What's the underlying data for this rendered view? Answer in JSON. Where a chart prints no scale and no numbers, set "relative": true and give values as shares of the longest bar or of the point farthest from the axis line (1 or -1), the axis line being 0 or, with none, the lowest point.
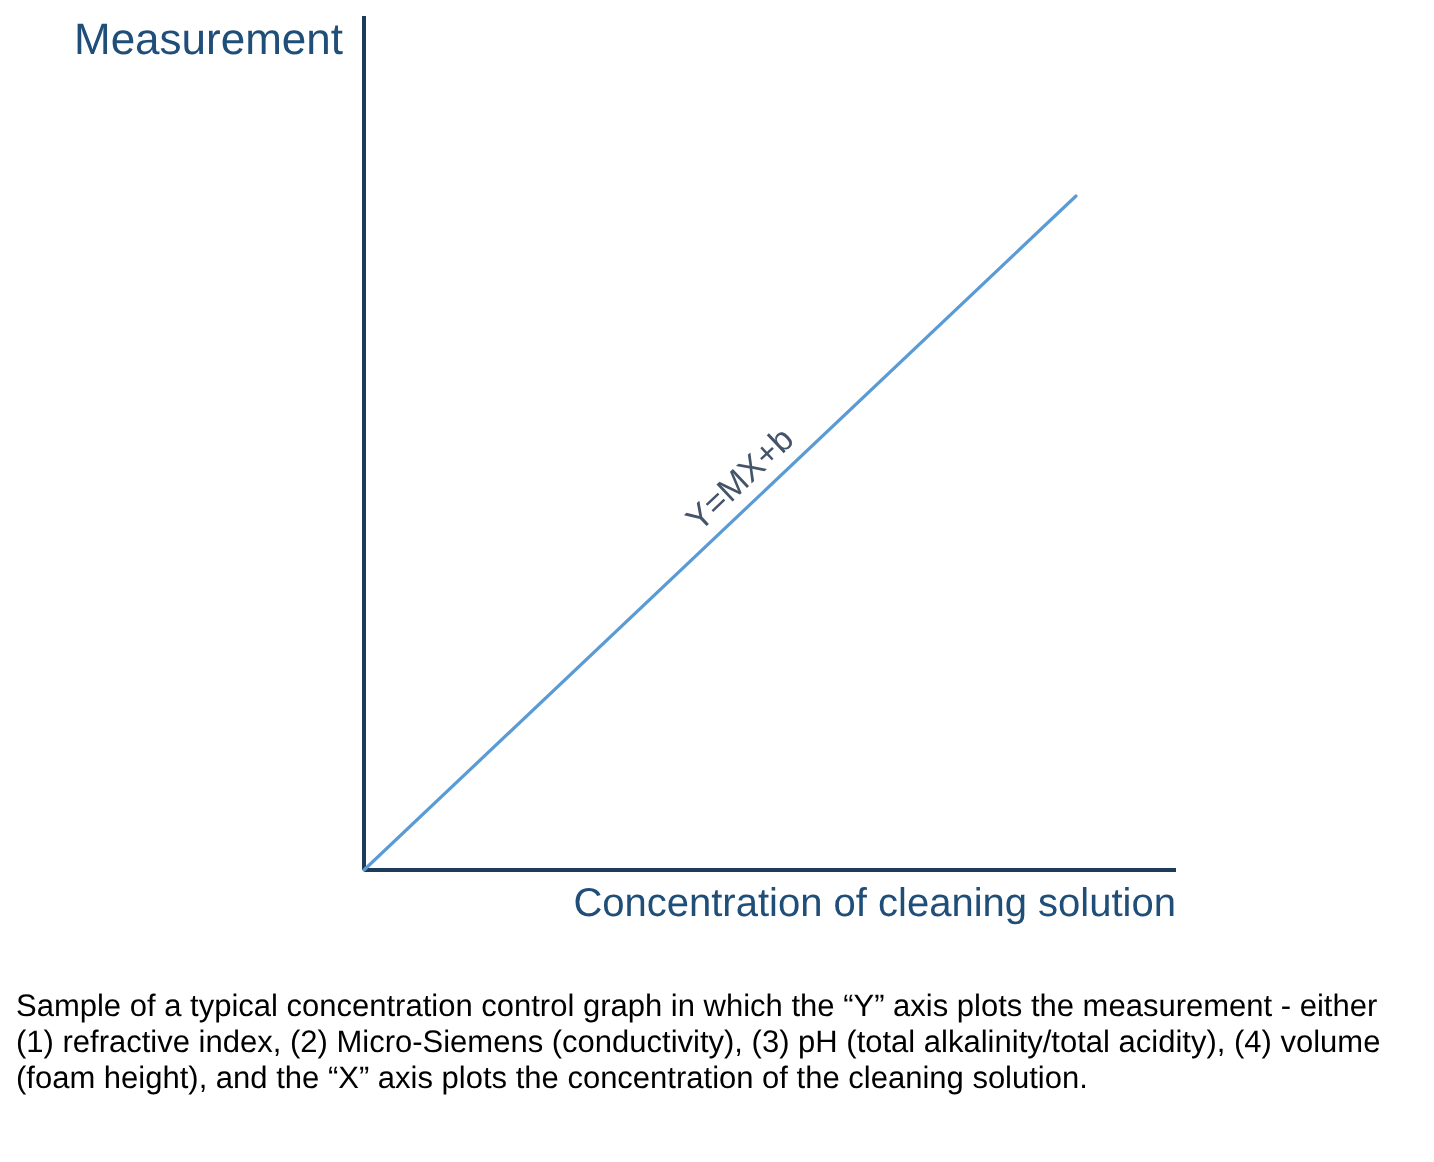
{
  "chart_data": {
    "type": "line",
    "relative": true,
    "xlabel": "Concentration of cleaning solution",
    "ylabel": "Measurement",
    "categories": [
      null,
      null
    ],
    "series": [
      {
        "color": "#5b9bd5",
        "values": [
          0,
          1
        ]
      }
    ],
    "annotations": [
      {
        "text": "Y=MX+b",
        "y": 0.55
      },
      "Sample of a typical concentration control graph in which the “Y” axis plots the measurement - either (1) refractive index, (2) Micro-Siemens (conductivity), (3) pH (total alkalinity/total acidity), (4) volume (foam height), and the “X” axis plots the concentration of the cleaning solution."
    ],
    "marker": "none",
    "line_style": "solid"
  }
}
